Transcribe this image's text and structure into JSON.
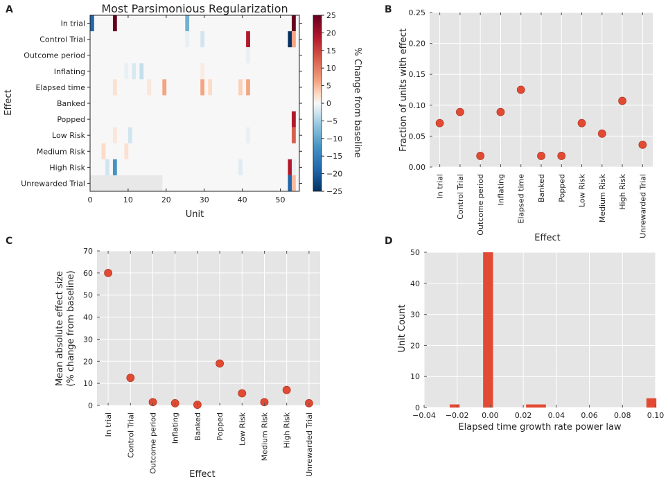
{
  "panels": {
    "A": "A",
    "B": "B",
    "C": "C",
    "D": "D"
  },
  "colors": {
    "marker": "#e24a33",
    "plot_bg": "#e5e5e5",
    "grid": "#ffffff",
    "masked": "#e8e8e8",
    "neutral": "#f7f7f7"
  },
  "chart_data": [
    {
      "panel": "A",
      "type": "heatmap",
      "title": "Most Parsimonious Regularization",
      "xlabel": "Unit",
      "ylabel": "Effect",
      "rows": [
        "In trial",
        "Control Trial",
        "Outcome period",
        "Inflating",
        "Elapsed time",
        "Banked",
        "Popped",
        "Low Risk",
        "Medium Risk",
        "High Risk",
        "Unrewarded Trial"
      ],
      "n_units": 55,
      "xlim": [
        0,
        55
      ],
      "xticks": [
        0,
        10,
        20,
        30,
        40,
        50
      ],
      "colorbar": {
        "label": "% Change from baseline",
        "min": -25,
        "max": 25,
        "ticks": [
          25,
          20,
          15,
          10,
          5,
          0,
          -5,
          -10,
          -15,
          -20,
          -25
        ]
      },
      "masked_cells": {
        "row": "Unrewarded Trial",
        "units_from": 0,
        "units_to": 19
      },
      "cells": [
        {
          "row": "In trial",
          "unit": 0,
          "value": -20
        },
        {
          "row": "In trial",
          "unit": 6,
          "value": 25
        },
        {
          "row": "In trial",
          "unit": 25,
          "value": -12
        },
        {
          "row": "In trial",
          "unit": 53,
          "value": 25
        },
        {
          "row": "Control Trial",
          "unit": 25,
          "value": -2
        },
        {
          "row": "Control Trial",
          "unit": 29,
          "value": -5
        },
        {
          "row": "Control Trial",
          "unit": 41,
          "value": 20
        },
        {
          "row": "Control Trial",
          "unit": 52,
          "value": -25
        },
        {
          "row": "Control Trial",
          "unit": 53,
          "value": 10
        },
        {
          "row": "Outcome period",
          "unit": 41,
          "value": -2
        },
        {
          "row": "Inflating",
          "unit": 9,
          "value": -2
        },
        {
          "row": "Inflating",
          "unit": 11,
          "value": -4
        },
        {
          "row": "Inflating",
          "unit": 13,
          "value": -6
        },
        {
          "row": "Inflating",
          "unit": 29,
          "value": 2
        },
        {
          "row": "Elapsed time",
          "unit": 6,
          "value": 4
        },
        {
          "row": "Elapsed time",
          "unit": 15,
          "value": 3
        },
        {
          "row": "Elapsed time",
          "unit": 19,
          "value": 10
        },
        {
          "row": "Elapsed time",
          "unit": 29,
          "value": 10
        },
        {
          "row": "Elapsed time",
          "unit": 31,
          "value": 5
        },
        {
          "row": "Elapsed time",
          "unit": 39,
          "value": 6
        },
        {
          "row": "Elapsed time",
          "unit": 41,
          "value": 10
        },
        {
          "row": "Popped",
          "unit": 53,
          "value": 20
        },
        {
          "row": "Low Risk",
          "unit": 6,
          "value": 3
        },
        {
          "row": "Low Risk",
          "unit": 10,
          "value": -5
        },
        {
          "row": "Low Risk",
          "unit": 41,
          "value": -2
        },
        {
          "row": "Low Risk",
          "unit": 53,
          "value": 15
        },
        {
          "row": "Medium Risk",
          "unit": 3,
          "value": 5
        },
        {
          "row": "Medium Risk",
          "unit": 9,
          "value": 4
        },
        {
          "row": "High Risk",
          "unit": 4,
          "value": -5
        },
        {
          "row": "High Risk",
          "unit": 6,
          "value": -15
        },
        {
          "row": "High Risk",
          "unit": 39,
          "value": -3
        },
        {
          "row": "High Risk",
          "unit": 52,
          "value": 20
        },
        {
          "row": "High Risk",
          "unit": 53,
          "value": -2
        },
        {
          "row": "Unrewarded Trial",
          "unit": 52,
          "value": -20
        },
        {
          "row": "Unrewarded Trial",
          "unit": 53,
          "value": 8
        }
      ]
    },
    {
      "panel": "B",
      "type": "scatter",
      "xlabel": "Effect",
      "ylabel": "Fraction of units with effect",
      "categories": [
        "In trial",
        "Control Trial",
        "Outcome period",
        "Inflating",
        "Elapsed time",
        "Banked",
        "Popped",
        "Low Risk",
        "Medium Risk",
        "High Risk",
        "Unrewarded Trial"
      ],
      "values": [
        0.071,
        0.089,
        0.018,
        0.089,
        0.125,
        0.018,
        0.018,
        0.071,
        0.054,
        0.107,
        0.036
      ],
      "ylim": [
        0,
        0.25
      ],
      "yticks": [
        0.0,
        0.05,
        0.1,
        0.15,
        0.2,
        0.25
      ],
      "ytick_labels": [
        "0.00",
        "0.05",
        "0.10",
        "0.15",
        "0.20",
        "0.25"
      ]
    },
    {
      "panel": "C",
      "type": "scatter",
      "xlabel": "Effect",
      "ylabel": "Mean absolute effect size",
      "ylabel2": "(% change from baseline)",
      "categories": [
        "In trial",
        "Control Trial",
        "Outcome period",
        "Inflating",
        "Banked",
        "Popped",
        "Low Risk",
        "Medium Risk",
        "High Risk",
        "Unrewarded Trial"
      ],
      "values": [
        60,
        12.5,
        1.5,
        1.0,
        0.3,
        19,
        5.5,
        1.5,
        7,
        1.0
      ],
      "ylim": [
        0,
        70
      ],
      "yticks": [
        0,
        10,
        20,
        30,
        40,
        50,
        60,
        70
      ],
      "ytick_labels": [
        "0",
        "10",
        "20",
        "30",
        "40",
        "50",
        "60",
        "70"
      ]
    },
    {
      "panel": "D",
      "type": "bar",
      "xlabel": "Elapsed time growth rate power law",
      "ylabel": "Unit Count",
      "xlim": [
        -0.04,
        0.1
      ],
      "ylim": [
        0,
        50
      ],
      "xticks": [
        -0.04,
        -0.02,
        0.0,
        0.02,
        0.04,
        0.06,
        0.08,
        0.1
      ],
      "xtick_labels": [
        "−0.04",
        "−0.02",
        "0.00",
        "0.02",
        "0.04",
        "0.06",
        "0.08",
        "0.10"
      ],
      "yticks": [
        0,
        10,
        20,
        30,
        40,
        50
      ],
      "ytick_labels": [
        "0",
        "10",
        "20",
        "30",
        "40",
        "50"
      ],
      "bins": [
        {
          "x0": -0.0245,
          "x1": -0.0185,
          "count": 1
        },
        {
          "x0": -0.0043,
          "x1": 0.0017,
          "count": 50
        },
        {
          "x0": 0.0217,
          "x1": 0.0277,
          "count": 1
        },
        {
          "x0": 0.0277,
          "x1": 0.0337,
          "count": 1
        },
        {
          "x0": 0.0945,
          "x1": 0.1005,
          "count": 3
        }
      ]
    }
  ]
}
